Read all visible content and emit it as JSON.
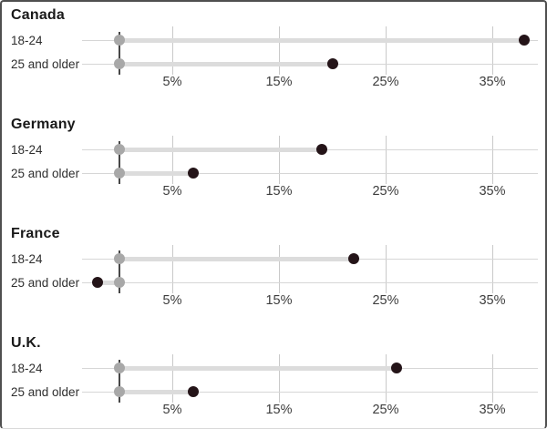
{
  "chart_data": {
    "type": "dumbbell",
    "orientation": "horizontal",
    "unit": "percent",
    "axis": {
      "ticks": [
        {
          "value": 5,
          "label": "5%"
        },
        {
          "value": 15,
          "label": "15%"
        },
        {
          "value": 25,
          "label": "25%"
        },
        {
          "value": 35,
          "label": "35%"
        }
      ],
      "xlim": [
        -3.5,
        39.5
      ],
      "baseline_value": 0,
      "grid": true,
      "tick_label_position": "below"
    },
    "groups": [
      {
        "label": "Canada",
        "rows": [
          {
            "label": "18-24",
            "start": 0,
            "value": 38
          },
          {
            "label": "25 and older",
            "start": 0,
            "value": 20
          }
        ]
      },
      {
        "label": "Germany",
        "rows": [
          {
            "label": "18-24",
            "start": 0,
            "value": 19
          },
          {
            "label": "25 and older",
            "start": 0,
            "value": 7
          }
        ]
      },
      {
        "label": "France",
        "rows": [
          {
            "label": "18-24",
            "start": 0,
            "value": 22
          },
          {
            "label": "25 and older",
            "start": 0,
            "value": -2
          }
        ]
      },
      {
        "label": "U.K.",
        "rows": [
          {
            "label": "18-24",
            "start": 0,
            "value": 26
          },
          {
            "label": "25 and older",
            "start": 0,
            "value": 7
          }
        ]
      }
    ],
    "colors": {
      "value_dot": "#241418",
      "baseline_dot": "#a8a8a8",
      "connector": "#dcdcdc",
      "row_line": "#d6d6d6",
      "gridline": "#c9c9c9",
      "zero_line": "#474747",
      "group_label": "#191919",
      "row_label": "#2e2e2e",
      "tick_label": "#3d3d3d",
      "background": "#ffffff"
    }
  }
}
